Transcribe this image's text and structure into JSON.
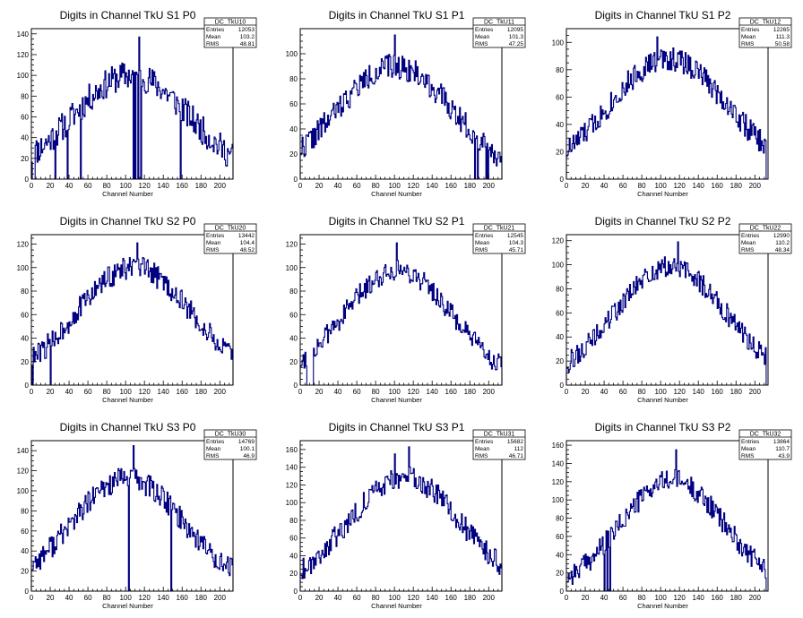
{
  "panels": [
    {
      "title": "Digits in Channel TkU S1 P0",
      "stat_name": "DC_TkU10",
      "entries": "12053",
      "mean": "103.2",
      "rms": "48.81"
    },
    {
      "title": "Digits in Channel TkU S1 P1",
      "stat_name": "DC_TkU11",
      "entries": "12095",
      "mean": "101.3",
      "rms": "47.25"
    },
    {
      "title": "Digits in Channel TkU S1 P2",
      "stat_name": "DC_TkU12",
      "entries": "12265",
      "mean": "111.3",
      "rms": "50.58"
    },
    {
      "title": "Digits in Channel TkU S2 P0",
      "stat_name": "DC_TkU20",
      "entries": "13442",
      "mean": "104.4",
      "rms": "48.52"
    },
    {
      "title": "Digits in Channel TkU S2 P1",
      "stat_name": "DC_TkU21",
      "entries": "12545",
      "mean": "104.3",
      "rms": "45.71"
    },
    {
      "title": "Digits in Channel TkU S2 P2",
      "stat_name": "DC_TkU22",
      "entries": "12990",
      "mean": "110.2",
      "rms": "48.34"
    },
    {
      "title": "Digits in Channel TkU S3 P0",
      "stat_name": "DC_TkU30",
      "entries": "14769",
      "mean": "100.1",
      "rms": "46.9"
    },
    {
      "title": "Digits in Channel TkU S3 P1",
      "stat_name": "DC_TkU31",
      "entries": "15682",
      "mean": "112",
      "rms": "46.71"
    },
    {
      "title": "Digits in Channel TkU S3 P2",
      "stat_name": "DC_TkU32",
      "entries": "13864",
      "mean": "110.7",
      "rms": "43.9"
    }
  ],
  "stat_labels": {
    "entries": "Entries",
    "mean": "Mean",
    "rms": "RMS"
  },
  "colors": {
    "histogram": "#000080",
    "axis": "#000000",
    "background": "#ffffff"
  },
  "chart_data": [
    {
      "type": "histogram",
      "title": "Digits in Channel TkU S1 P0",
      "xlabel": "Channel Number",
      "ylabel": "",
      "xlim": [
        0,
        214
      ],
      "ylim": [
        0,
        145
      ],
      "x_ticks": [
        0,
        20,
        40,
        60,
        80,
        100,
        120,
        140,
        160,
        180,
        200
      ],
      "y_ticks": [
        0,
        20,
        40,
        60,
        80,
        100,
        120,
        140
      ],
      "amp": 100,
      "peak": 105,
      "width": 62,
      "noise": 14,
      "seed": 11,
      "zeros": [
        1,
        2,
        3,
        25,
        38,
        52,
        108,
        110,
        113,
        114,
        116,
        158
      ],
      "spikes": [
        [
          114,
          137
        ]
      ]
    },
    {
      "type": "histogram",
      "title": "Digits in Channel TkU S1 P1",
      "xlabel": "Channel Number",
      "ylabel": "",
      "xlim": [
        0,
        214
      ],
      "ylim": [
        0,
        120
      ],
      "x_ticks": [
        0,
        20,
        40,
        60,
        80,
        100,
        120,
        140,
        160,
        180,
        200
      ],
      "y_ticks": [
        0,
        20,
        40,
        60,
        80,
        100
      ],
      "amp": 90,
      "peak": 100,
      "width": 62,
      "noise": 10,
      "seed": 22,
      "zeros": [
        185,
        188,
        197,
        199
      ],
      "spikes": [
        [
          100,
          115
        ]
      ]
    },
    {
      "type": "histogram",
      "title": "Digits in Channel TkU S1 P2",
      "xlabel": "Channel Number",
      "ylabel": "",
      "xlim": [
        0,
        214
      ],
      "ylim": [
        0,
        110
      ],
      "x_ticks": [
        0,
        20,
        40,
        60,
        80,
        100,
        120,
        140,
        160,
        180,
        200
      ],
      "y_ticks": [
        0,
        20,
        40,
        60,
        80,
        100
      ],
      "amp": 88,
      "peak": 108,
      "width": 64,
      "noise": 9,
      "seed": 33,
      "zeros": [
        212,
        213
      ],
      "spikes": [
        [
          96,
          104
        ]
      ]
    },
    {
      "type": "histogram",
      "title": "Digits in Channel TkU S2 P0",
      "xlabel": "Channel Number",
      "ylabel": "",
      "xlim": [
        0,
        214
      ],
      "ylim": [
        0,
        128
      ],
      "x_ticks": [
        0,
        20,
        40,
        60,
        80,
        100,
        120,
        140,
        160,
        180,
        200
      ],
      "y_ticks": [
        0,
        20,
        40,
        60,
        80,
        100,
        120
      ],
      "amp": 100,
      "peak": 108,
      "width": 62,
      "noise": 10,
      "seed": 44,
      "zeros": [
        1,
        20
      ],
      "spikes": [
        [
          112,
          121
        ]
      ]
    },
    {
      "type": "histogram",
      "title": "Digits in Channel TkU S2 P1",
      "xlabel": "Channel Number",
      "ylabel": "",
      "xlim": [
        0,
        214
      ],
      "ylim": [
        0,
        128
      ],
      "x_ticks": [
        0,
        20,
        40,
        60,
        80,
        100,
        120,
        140,
        160,
        180,
        200
      ],
      "y_ticks": [
        0,
        20,
        40,
        60,
        80,
        100,
        120
      ],
      "amp": 98,
      "peak": 103,
      "width": 58,
      "noise": 9,
      "seed": 55,
      "zeros": [
        7,
        8,
        9,
        10,
        11,
        12,
        13
      ],
      "spikes": [
        [
          102,
          121
        ]
      ]
    },
    {
      "type": "histogram",
      "title": "Digits in Channel TkU S2 P2",
      "xlabel": "Channel Number",
      "ylabel": "",
      "xlim": [
        0,
        214
      ],
      "ylim": [
        0,
        125
      ],
      "x_ticks": [
        0,
        20,
        40,
        60,
        80,
        100,
        120,
        140,
        160,
        180,
        200
      ],
      "y_ticks": [
        0,
        20,
        40,
        60,
        80,
        100,
        120
      ],
      "amp": 98,
      "peak": 110,
      "width": 60,
      "noise": 9,
      "seed": 66,
      "zeros": [
        212,
        213
      ],
      "spikes": [
        [
          118,
          119
        ]
      ]
    },
    {
      "type": "histogram",
      "title": "Digits in Channel TkU S3 P0",
      "xlabel": "Channel Number",
      "ylabel": "",
      "xlim": [
        0,
        214
      ],
      "ylim": [
        0,
        150
      ],
      "x_ticks": [
        0,
        20,
        40,
        60,
        80,
        100,
        120,
        140,
        160,
        180,
        200
      ],
      "y_ticks": [
        0,
        20,
        40,
        60,
        80,
        100,
        120,
        140
      ],
      "amp": 112,
      "peak": 102,
      "width": 60,
      "noise": 12,
      "seed": 77,
      "zeros": [
        103,
        148
      ],
      "spikes": [
        [
          108,
          145
        ]
      ]
    },
    {
      "type": "histogram",
      "title": "Digits in Channel TkU S3 P1",
      "xlabel": "Channel Number",
      "ylabel": "",
      "xlim": [
        0,
        214
      ],
      "ylim": [
        0,
        170
      ],
      "x_ticks": [
        0,
        20,
        40,
        60,
        80,
        100,
        120,
        140,
        160,
        180,
        200
      ],
      "y_ticks": [
        0,
        20,
        40,
        60,
        80,
        100,
        120,
        140,
        160
      ],
      "amp": 128,
      "peak": 110,
      "width": 60,
      "noise": 13,
      "seed": 88,
      "zeros": [],
      "spikes": [
        [
          115,
          163
        ],
        [
          100,
          155
        ]
      ]
    },
    {
      "type": "histogram",
      "title": "Digits in Channel TkU S3 P2",
      "xlabel": "Channel Number",
      "ylabel": "",
      "xlim": [
        0,
        214
      ],
      "ylim": [
        0,
        165
      ],
      "x_ticks": [
        0,
        20,
        40,
        60,
        80,
        100,
        120,
        140,
        160,
        180,
        200
      ],
      "y_ticks": [
        0,
        20,
        40,
        60,
        80,
        100,
        120,
        140,
        160
      ],
      "amp": 122,
      "peak": 112,
      "width": 55,
      "noise": 12,
      "seed": 99,
      "zeros": [
        40,
        43,
        46,
        212,
        213
      ],
      "spikes": [
        [
          116,
          155
        ]
      ]
    }
  ]
}
